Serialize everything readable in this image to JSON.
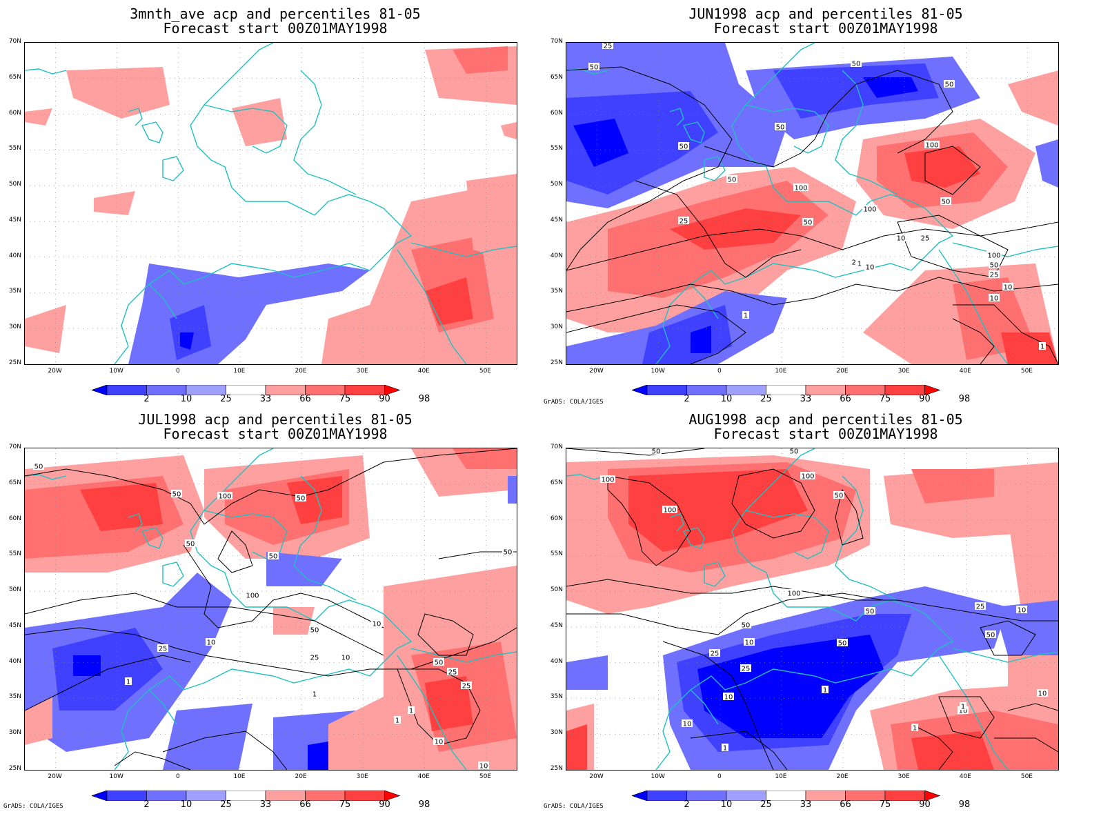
{
  "panels": [
    {
      "title1": "3mnth_ave acp and percentiles 81-05",
      "title2": "Forecast start 00Z01MAY1998",
      "credit": ""
    },
    {
      "title1": "JUN1998 acp and percentiles 81-05",
      "title2": "Forecast start 00Z01MAY1998",
      "credit": "GrADS: COLA/IGES"
    },
    {
      "title1": "JUL1998 acp and percentiles 81-05",
      "title2": "Forecast start 00Z01MAY1998",
      "credit": "GrADS: COLA/IGES"
    },
    {
      "title1": "AUG1998 acp and percentiles 81-05",
      "title2": "Forecast start 00Z01MAY1998",
      "credit": "GrADS: COLA/IGES"
    }
  ],
  "lat_labels": [
    "70N",
    "65N",
    "60N",
    "55N",
    "50N",
    "45N",
    "40N",
    "35N",
    "30N",
    "25N"
  ],
  "lon_labels": [
    "20W",
    "10W",
    "0",
    "10E",
    "20E",
    "30E",
    "40E",
    "50E"
  ],
  "colorbar": {
    "labels": [
      "2",
      "10",
      "25",
      "33",
      "66",
      "75",
      "90",
      "98"
    ],
    "colors": [
      "#0000ff",
      "#4040ff",
      "#7070ff",
      "#a0a0ff",
      "#ffffff",
      "#ffa0a0",
      "#ff7070",
      "#ff4040",
      "#ff0000"
    ]
  },
  "contour_labels": {
    "jun": [
      "25",
      "50",
      "50",
      "50",
      "50",
      "25",
      "50",
      "50",
      "100",
      "100",
      "50",
      "50",
      "100",
      "25",
      "10",
      "25",
      "10",
      "100",
      "50",
      "25",
      "10",
      "10",
      "1",
      "1",
      "1"
    ],
    "jul": [
      "50",
      "50",
      "100",
      "50",
      "50",
      "50",
      "100",
      "50",
      "10",
      "25",
      "10",
      "25",
      "10",
      "1",
      "1",
      "1",
      "50",
      "25",
      "25",
      "10",
      "1",
      "10",
      "50"
    ],
    "aug": [
      "50",
      "50",
      "100",
      "100",
      "100",
      "50",
      "50",
      "100",
      "50",
      "50",
      "25",
      "10",
      "25",
      "10",
      "1",
      "10",
      "1",
      "1",
      "10",
      "50",
      "25",
      "10",
      "1",
      "10"
    ]
  },
  "colors": {
    "coast": "#20c0c0",
    "contour": "#000000"
  }
}
